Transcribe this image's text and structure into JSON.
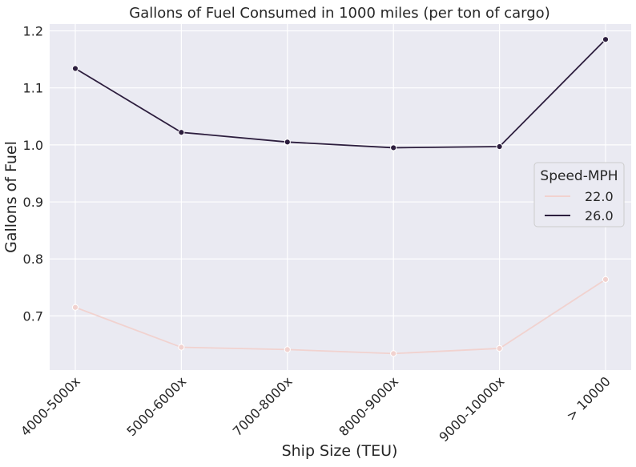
{
  "chart_data": {
    "type": "line",
    "title": "Gallons of Fuel Consumed in 1000 miles (per ton of cargo)",
    "xlabel": "Ship Size (TEU)",
    "ylabel": "Gallons of Fuel",
    "categories": [
      "4000-5000x",
      "5000-6000x",
      "7000-8000x",
      "8000-9000x",
      "9000-10000x",
      "> 10000"
    ],
    "ylim": [
      0.605,
      1.212
    ],
    "yticks": [
      "0.7",
      "0.8",
      "0.9",
      "1.0",
      "1.1",
      "1.2"
    ],
    "grid": true,
    "legend": {
      "title": "Speed-MPH",
      "placement": "center-right"
    },
    "series": [
      {
        "name": "22.0",
        "color": "#f1d2cf",
        "values": [
          0.715,
          0.645,
          0.641,
          0.634,
          0.643,
          0.764
        ]
      },
      {
        "name": "26.0",
        "color": "#2d1e3e",
        "values": [
          1.134,
          1.022,
          1.005,
          0.995,
          0.997,
          1.185
        ]
      }
    ],
    "style": {
      "plot_background": "#eaeaf2",
      "grid_color": "#ffffff"
    }
  }
}
